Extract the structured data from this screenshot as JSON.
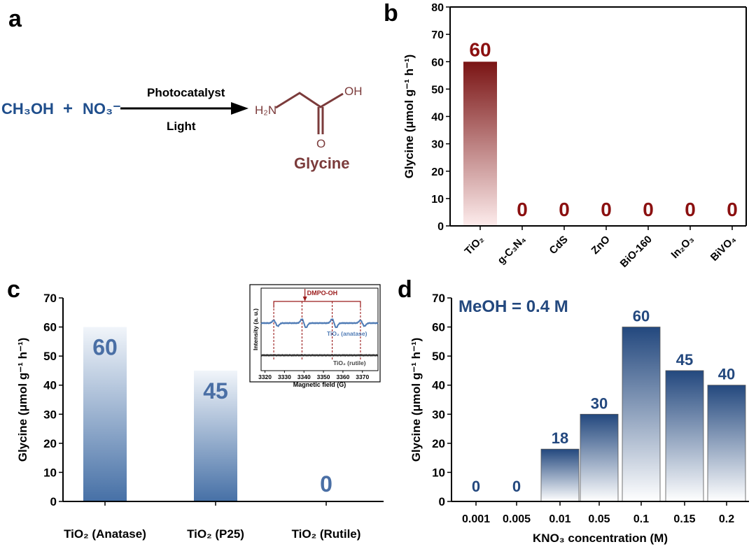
{
  "panel_a": {
    "letter": "a",
    "reactant1": "CH₃OH",
    "plus": "+",
    "reactant2": "NO₃⁻",
    "above_arrow": "Photocatalyst",
    "below_arrow": "Light",
    "amine": "H₂N",
    "hydroxyl": "OH",
    "oxygen": "O",
    "product": "Glycine",
    "reactant_color": "#1f4e8c",
    "product_color": "#7b3b3b"
  },
  "chart_data": [
    {
      "panel": "b",
      "type": "bar",
      "categories": [
        "TiO₂",
        "g-C₃N₄",
        "CdS",
        "ZnO",
        "BiO-160",
        "In₂O₃",
        "BiVO₄"
      ],
      "values": [
        60,
        0,
        0,
        0,
        0,
        0,
        0
      ],
      "value_labels": [
        "60",
        "0",
        "0",
        "0",
        "0",
        "0",
        "0"
      ],
      "ylabel": "Glycine (μmol g⁻¹ h⁻¹)",
      "xlabel": "",
      "ylim": [
        0,
        80
      ],
      "yticks": [
        "0",
        "10",
        "20",
        "30",
        "40",
        "50",
        "60",
        "70",
        "80"
      ],
      "colors": {
        "top": "#7a1414",
        "bottom": "#fdecec",
        "label": "#8b1010"
      }
    },
    {
      "panel": "c",
      "type": "bar",
      "categories": [
        "TiO₂ (Anatase)",
        "TiO₂ (P25)",
        "TiO₂ (Rutile)"
      ],
      "values": [
        60,
        45,
        0
      ],
      "value_labels": [
        "60",
        "45",
        "0"
      ],
      "ylabel": "Glycine (μmol g⁻¹ h⁻¹)",
      "xlabel": "",
      "ylim": [
        0,
        70
      ],
      "yticks": [
        "0",
        "10",
        "20",
        "30",
        "40",
        "50",
        "60",
        "70"
      ],
      "colors": {
        "top": "#f1f5fa",
        "bottom": "#4670a6",
        "label": "#4a6fa5"
      },
      "inset": {
        "type": "line",
        "xlabel": "Magnetic field (G)",
        "ylabel": "Intensity (a. u.)",
        "xlim": [
          3318,
          3378
        ],
        "xticks": [
          "3320",
          "3330",
          "3340",
          "3350",
          "3360",
          "3370"
        ],
        "annotation": "DMPO-OH",
        "peak_positions": [
          3324.5,
          3339,
          3354.5,
          3369
        ],
        "series": [
          {
            "name": "TiO₂ (anatase)",
            "color": "#4f7bb5",
            "signal": true
          },
          {
            "name": "TiO₂ (rutile)",
            "color": "#333333",
            "signal": false
          }
        ]
      }
    },
    {
      "panel": "d",
      "type": "bar",
      "categories": [
        "0.001",
        "0.005",
        "0.01",
        "0.05",
        "0.1",
        "0.15",
        "0.2"
      ],
      "values": [
        0,
        0,
        18,
        30,
        60,
        45,
        40
      ],
      "value_labels": [
        "0",
        "0",
        "18",
        "30",
        "60",
        "45",
        "40"
      ],
      "ylabel": "Glycine (μmol g⁻¹ h⁻¹)",
      "xlabel": "KNO₃ concentration (M)",
      "ylim": [
        0,
        70
      ],
      "yticks": [
        "0",
        "10",
        "20",
        "30",
        "40",
        "50",
        "60",
        "70"
      ],
      "annotation": "MeOH = 0.4 M",
      "colors": {
        "top": "#23487e",
        "bottom": "#ffffff",
        "label": "#23487e"
      }
    }
  ],
  "panel_letters": [
    "b",
    "c",
    "d"
  ]
}
